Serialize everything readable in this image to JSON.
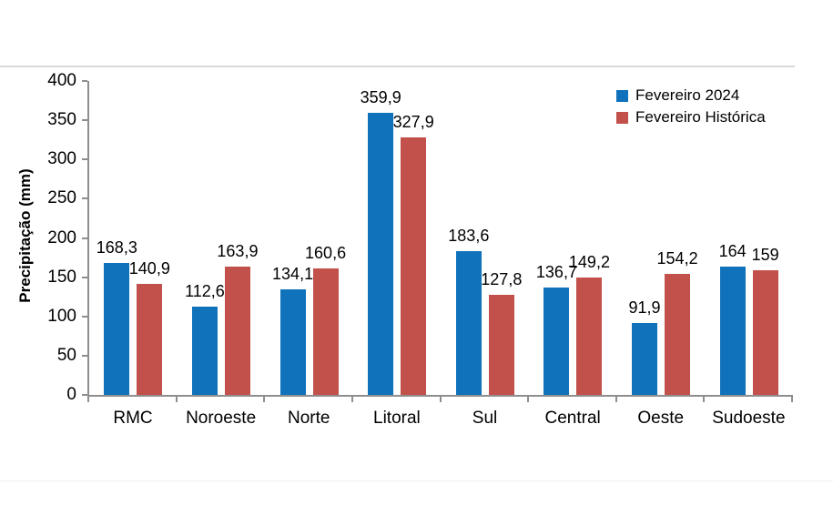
{
  "chart_data": {
    "type": "bar",
    "title": "",
    "xlabel": "",
    "ylabel": "Precipitação (mm)",
    "ylim": [
      0,
      400
    ],
    "yticks": [
      0,
      50,
      100,
      150,
      200,
      250,
      300,
      350,
      400
    ],
    "grid": false,
    "legend_position": "top-right-inside",
    "categories": [
      "RMC",
      "Noroeste",
      "Norte",
      "Litoral",
      "Sul",
      "Central",
      "Oeste",
      "Sudoeste"
    ],
    "series": [
      {
        "name": "Fevereiro 2024",
        "color": "#1072bb",
        "values": [
          168.3,
          112.6,
          134.1,
          359.9,
          183.6,
          136.7,
          91.9,
          164
        ],
        "labels": [
          "168,3",
          "112,6",
          "134,1",
          "359,9",
          "183,6",
          "136,7",
          "91,9",
          "164"
        ]
      },
      {
        "name": "Fevereiro Histórica",
        "color": "#c3514b",
        "values": [
          140.9,
          163.9,
          160.6,
          327.9,
          127.8,
          149.2,
          154.2,
          159
        ],
        "labels": [
          "140,9",
          "163,9",
          "160,6",
          "327,9",
          "127,8",
          "149,2",
          "154,2",
          "159"
        ]
      }
    ],
    "axis_color": "#8e8e8e"
  }
}
